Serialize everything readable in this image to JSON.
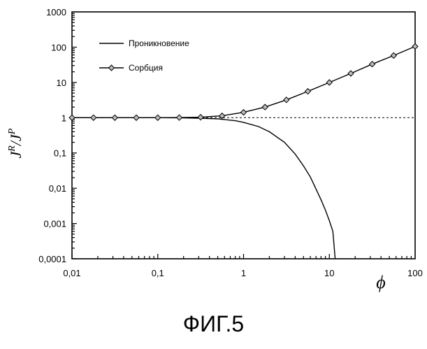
{
  "chart_data": {
    "type": "line",
    "xscale": "log",
    "yscale": "log",
    "xlim": [
      0.01,
      100
    ],
    "ylim": [
      0.0001,
      1000
    ],
    "xticks": [
      "0,01",
      "0,1",
      "1",
      "10",
      "100"
    ],
    "yticks": [
      "0,0001",
      "0,001",
      "0,01",
      "0,1",
      "1",
      "10",
      "100",
      "1000"
    ],
    "xlabel": "ϕ",
    "ylabel": {
      "main1": "J",
      "sup1": "R",
      "slash": "/",
      "main2": "J",
      "sup2": "P"
    },
    "grid": false,
    "legend_position": "top-left",
    "reference_line": {
      "y": 1,
      "style": "dashed"
    },
    "series": [
      {
        "name": "Проникновение",
        "style": "solid-line",
        "x": [
          0.01,
          0.1,
          0.2,
          0.3,
          0.5,
          0.8,
          1,
          1.5,
          2,
          3,
          4,
          5,
          6,
          7,
          8,
          9,
          10,
          11,
          11.7
        ],
        "y": [
          1,
          1,
          0.99,
          0.97,
          0.93,
          0.82,
          0.74,
          0.56,
          0.4,
          0.2,
          0.093,
          0.043,
          0.021,
          0.0095,
          0.0047,
          0.0024,
          0.0012,
          0.0006,
          0.0001
        ]
      },
      {
        "name": "Сорбция",
        "style": "line-diamond",
        "x": [
          0.01,
          0.0178,
          0.0316,
          0.0562,
          0.1,
          0.178,
          0.316,
          0.562,
          1,
          1.78,
          3.16,
          5.62,
          10,
          17.8,
          31.6,
          56.2,
          100
        ],
        "y": [
          1,
          1,
          1,
          1,
          1,
          1.01,
          1.03,
          1.13,
          1.42,
          2.0,
          3.2,
          5.6,
          10,
          18,
          33,
          58,
          105
        ]
      }
    ]
  },
  "caption": "ФИГ.5"
}
